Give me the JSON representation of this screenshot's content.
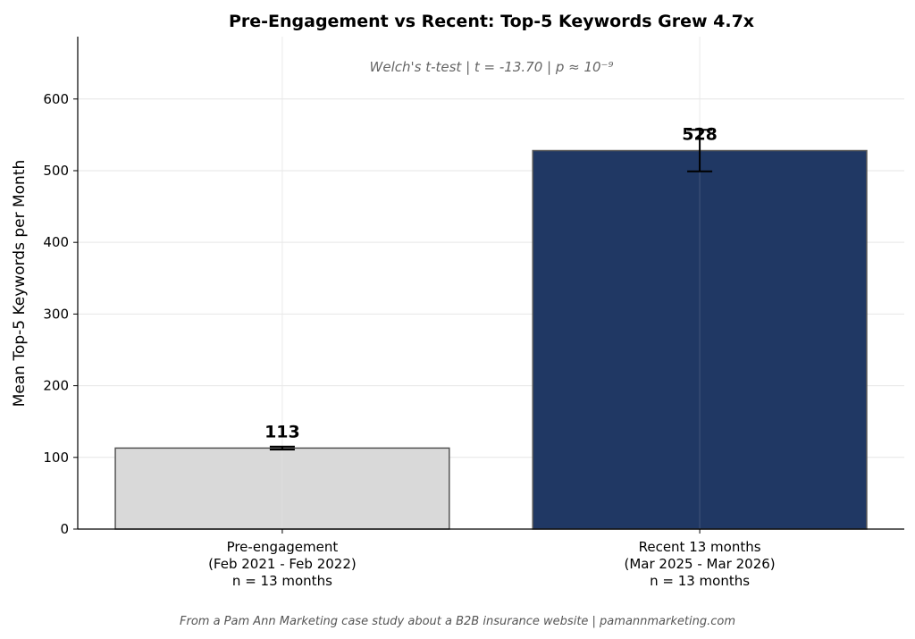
{
  "chart_data": {
    "type": "bar",
    "title": "Pre-Engagement vs Recent: Top-5 Keywords Grew 4.7x",
    "subtitle": "Welch's t-test  |  t = -13.70  |  p ≈ 10⁻⁹",
    "xlabel": "",
    "ylabel": "Mean Top-5 Keywords per Month",
    "categories": [
      [
        "Pre-engagement",
        "(Feb 2021 - Feb 2022)",
        "n = 13 months"
      ],
      [
        "Recent 13 months",
        "(Mar 2025 - Mar 2026)",
        "n = 13 months"
      ]
    ],
    "values": [
      113,
      528
    ],
    "errors": [
      2,
      29
    ],
    "data_labels": [
      "113",
      "528"
    ],
    "bar_colors": [
      "#d9d9d9",
      "#203864"
    ],
    "bar_edge_color": "#555555",
    "ylim": [
      0,
      687
    ],
    "yticks": [
      0,
      100,
      200,
      300,
      400,
      500,
      600
    ],
    "grid": true,
    "footer": "From a Pam Ann Marketing case study about a B2B insurance website  |  pamannmarketing.com"
  }
}
